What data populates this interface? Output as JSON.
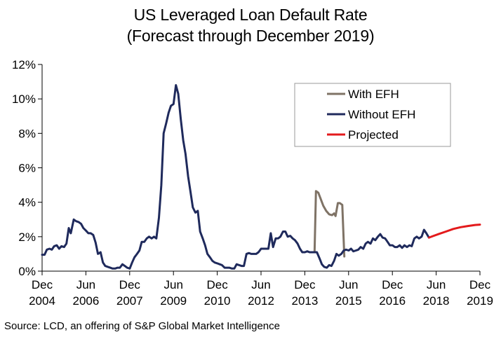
{
  "chart_data": {
    "type": "line",
    "title": "US Leveraged Loan Default Rate",
    "subtitle": "(Forecast through December 2019)",
    "source": "Source: LCD, an offering of S&P Global Market Intelligence",
    "xlim": [
      2004.917,
      2019.917
    ],
    "ylim": [
      0,
      12
    ],
    "y_ticks": [
      "0%",
      "2%",
      "4%",
      "6%",
      "8%",
      "10%",
      "12%"
    ],
    "y_tick_values": [
      0,
      2,
      4,
      6,
      8,
      10,
      12
    ],
    "x_ticks": [
      {
        "month": "Dec",
        "year": "2004",
        "value": 2004.917
      },
      {
        "month": "Jun",
        "year": "2006",
        "value": 2006.417
      },
      {
        "month": "Dec",
        "year": "2007",
        "value": 2007.917
      },
      {
        "month": "Jun",
        "year": "2009",
        "value": 2009.417
      },
      {
        "month": "Dec",
        "year": "2010",
        "value": 2010.917
      },
      {
        "month": "Jun",
        "year": "2012",
        "value": 2012.417
      },
      {
        "month": "Dec",
        "year": "2013",
        "value": 2013.917
      },
      {
        "month": "Jun",
        "year": "2015",
        "value": 2015.417
      },
      {
        "month": "Dec",
        "year": "2016",
        "value": 2016.917
      },
      {
        "month": "Jun",
        "year": "2018",
        "value": 2018.417
      },
      {
        "month": "Dec",
        "year": "2019",
        "value": 2019.917
      }
    ],
    "grid": false,
    "legend_position": "top-right",
    "series": [
      {
        "name": "With EFH",
        "color": "#7F7366",
        "points": [
          [
            2014.25,
            1.1
          ],
          [
            2014.3,
            4.65
          ],
          [
            2014.38,
            4.55
          ],
          [
            2014.46,
            4.2
          ],
          [
            2014.55,
            3.8
          ],
          [
            2014.65,
            3.5
          ],
          [
            2014.75,
            3.3
          ],
          [
            2014.85,
            3.25
          ],
          [
            2014.92,
            3.35
          ],
          [
            2014.97,
            3.2
          ],
          [
            2015.05,
            3.95
          ],
          [
            2015.12,
            3.95
          ],
          [
            2015.2,
            3.85
          ],
          [
            2015.27,
            0.85
          ]
        ]
      },
      {
        "name": "Without EFH",
        "color": "#1F2A5C",
        "points": [
          [
            2004.917,
            0.95
          ],
          [
            2005.0,
            0.95
          ],
          [
            2005.08,
            1.25
          ],
          [
            2005.17,
            1.3
          ],
          [
            2005.25,
            1.25
          ],
          [
            2005.33,
            1.45
          ],
          [
            2005.42,
            1.5
          ],
          [
            2005.5,
            1.3
          ],
          [
            2005.58,
            1.45
          ],
          [
            2005.67,
            1.4
          ],
          [
            2005.75,
            1.6
          ],
          [
            2005.83,
            2.5
          ],
          [
            2005.9,
            2.2
          ],
          [
            2006.0,
            3.0
          ],
          [
            2006.08,
            2.9
          ],
          [
            2006.17,
            2.85
          ],
          [
            2006.25,
            2.75
          ],
          [
            2006.33,
            2.5
          ],
          [
            2006.42,
            2.35
          ],
          [
            2006.5,
            2.2
          ],
          [
            2006.58,
            2.2
          ],
          [
            2006.67,
            2.1
          ],
          [
            2006.75,
            1.65
          ],
          [
            2006.83,
            1.0
          ],
          [
            2006.92,
            1.1
          ],
          [
            2007.0,
            0.5
          ],
          [
            2007.08,
            0.3
          ],
          [
            2007.17,
            0.25
          ],
          [
            2007.25,
            0.2
          ],
          [
            2007.33,
            0.15
          ],
          [
            2007.42,
            0.15
          ],
          [
            2007.5,
            0.2
          ],
          [
            2007.58,
            0.2
          ],
          [
            2007.67,
            0.4
          ],
          [
            2007.75,
            0.3
          ],
          [
            2007.83,
            0.2
          ],
          [
            2007.92,
            0.15
          ],
          [
            2008.0,
            0.5
          ],
          [
            2008.08,
            0.8
          ],
          [
            2008.17,
            1.0
          ],
          [
            2008.25,
            1.2
          ],
          [
            2008.33,
            1.7
          ],
          [
            2008.42,
            1.7
          ],
          [
            2008.5,
            1.9
          ],
          [
            2008.58,
            2.0
          ],
          [
            2008.67,
            1.9
          ],
          [
            2008.75,
            2.0
          ],
          [
            2008.83,
            1.9
          ],
          [
            2008.92,
            3.1
          ],
          [
            2009.0,
            5.0
          ],
          [
            2009.08,
            8.0
          ],
          [
            2009.17,
            8.6
          ],
          [
            2009.25,
            9.2
          ],
          [
            2009.33,
            9.6
          ],
          [
            2009.42,
            9.7
          ],
          [
            2009.5,
            10.8
          ],
          [
            2009.58,
            10.3
          ],
          [
            2009.67,
            8.8
          ],
          [
            2009.75,
            7.6
          ],
          [
            2009.83,
            6.8
          ],
          [
            2009.92,
            5.5
          ],
          [
            2010.0,
            4.6
          ],
          [
            2010.08,
            3.7
          ],
          [
            2010.17,
            3.4
          ],
          [
            2010.25,
            3.5
          ],
          [
            2010.33,
            2.3
          ],
          [
            2010.42,
            1.9
          ],
          [
            2010.5,
            1.5
          ],
          [
            2010.58,
            1.0
          ],
          [
            2010.67,
            0.8
          ],
          [
            2010.75,
            0.6
          ],
          [
            2010.83,
            0.5
          ],
          [
            2010.92,
            0.45
          ],
          [
            2011.0,
            0.4
          ],
          [
            2011.08,
            0.35
          ],
          [
            2011.17,
            0.2
          ],
          [
            2011.25,
            0.2
          ],
          [
            2011.33,
            0.2
          ],
          [
            2011.42,
            0.15
          ],
          [
            2011.5,
            0.15
          ],
          [
            2011.58,
            0.4
          ],
          [
            2011.67,
            0.35
          ],
          [
            2011.75,
            0.3
          ],
          [
            2011.83,
            0.3
          ],
          [
            2011.92,
            1.0
          ],
          [
            2012.0,
            1.05
          ],
          [
            2012.08,
            1.0
          ],
          [
            2012.17,
            1.0
          ],
          [
            2012.25,
            1.0
          ],
          [
            2012.33,
            1.1
          ],
          [
            2012.42,
            1.3
          ],
          [
            2012.5,
            1.3
          ],
          [
            2012.58,
            1.3
          ],
          [
            2012.67,
            1.3
          ],
          [
            2012.75,
            2.2
          ],
          [
            2012.83,
            1.4
          ],
          [
            2012.92,
            1.9
          ],
          [
            2013.0,
            1.9
          ],
          [
            2013.08,
            2.0
          ],
          [
            2013.17,
            2.3
          ],
          [
            2013.25,
            2.3
          ],
          [
            2013.33,
            2.0
          ],
          [
            2013.42,
            2.05
          ],
          [
            2013.5,
            1.9
          ],
          [
            2013.58,
            1.8
          ],
          [
            2013.67,
            1.6
          ],
          [
            2013.75,
            1.3
          ],
          [
            2013.83,
            1.1
          ],
          [
            2013.92,
            1.1
          ],
          [
            2014.0,
            1.15
          ],
          [
            2014.08,
            1.1
          ],
          [
            2014.17,
            1.1
          ],
          [
            2014.25,
            1.1
          ],
          [
            2014.33,
            1.1
          ],
          [
            2014.42,
            0.75
          ],
          [
            2014.5,
            0.4
          ],
          [
            2014.58,
            0.25
          ],
          [
            2014.67,
            0.2
          ],
          [
            2014.75,
            0.35
          ],
          [
            2014.83,
            0.3
          ],
          [
            2014.92,
            0.6
          ],
          [
            2015.0,
            1.0
          ],
          [
            2015.08,
            0.9
          ],
          [
            2015.17,
            1.0
          ],
          [
            2015.25,
            1.2
          ],
          [
            2015.33,
            1.25
          ],
          [
            2015.42,
            1.2
          ],
          [
            2015.5,
            1.3
          ],
          [
            2015.58,
            1.15
          ],
          [
            2015.67,
            1.2
          ],
          [
            2015.75,
            1.25
          ],
          [
            2015.83,
            1.4
          ],
          [
            2015.92,
            1.3
          ],
          [
            2016.0,
            1.6
          ],
          [
            2016.08,
            1.7
          ],
          [
            2016.17,
            1.6
          ],
          [
            2016.25,
            1.9
          ],
          [
            2016.33,
            1.8
          ],
          [
            2016.42,
            2.0
          ],
          [
            2016.5,
            2.15
          ],
          [
            2016.58,
            1.95
          ],
          [
            2016.67,
            1.9
          ],
          [
            2016.75,
            1.7
          ],
          [
            2016.83,
            1.5
          ],
          [
            2016.92,
            1.5
          ],
          [
            2017.0,
            1.4
          ],
          [
            2017.08,
            1.4
          ],
          [
            2017.17,
            1.5
          ],
          [
            2017.25,
            1.35
          ],
          [
            2017.33,
            1.5
          ],
          [
            2017.42,
            1.4
          ],
          [
            2017.5,
            1.5
          ],
          [
            2017.58,
            1.45
          ],
          [
            2017.67,
            1.9
          ],
          [
            2017.75,
            2.0
          ],
          [
            2017.83,
            1.9
          ],
          [
            2017.92,
            2.0
          ],
          [
            2018.0,
            2.4
          ],
          [
            2018.08,
            2.2
          ],
          [
            2018.17,
            1.95
          ]
        ]
      },
      {
        "name": "Projected",
        "color": "#E31A1C",
        "points": [
          [
            2018.17,
            1.95
          ],
          [
            2018.33,
            2.05
          ],
          [
            2018.5,
            2.15
          ],
          [
            2018.75,
            2.3
          ],
          [
            2019.0,
            2.45
          ],
          [
            2019.25,
            2.55
          ],
          [
            2019.5,
            2.62
          ],
          [
            2019.75,
            2.68
          ],
          [
            2019.917,
            2.7
          ]
        ]
      }
    ]
  }
}
